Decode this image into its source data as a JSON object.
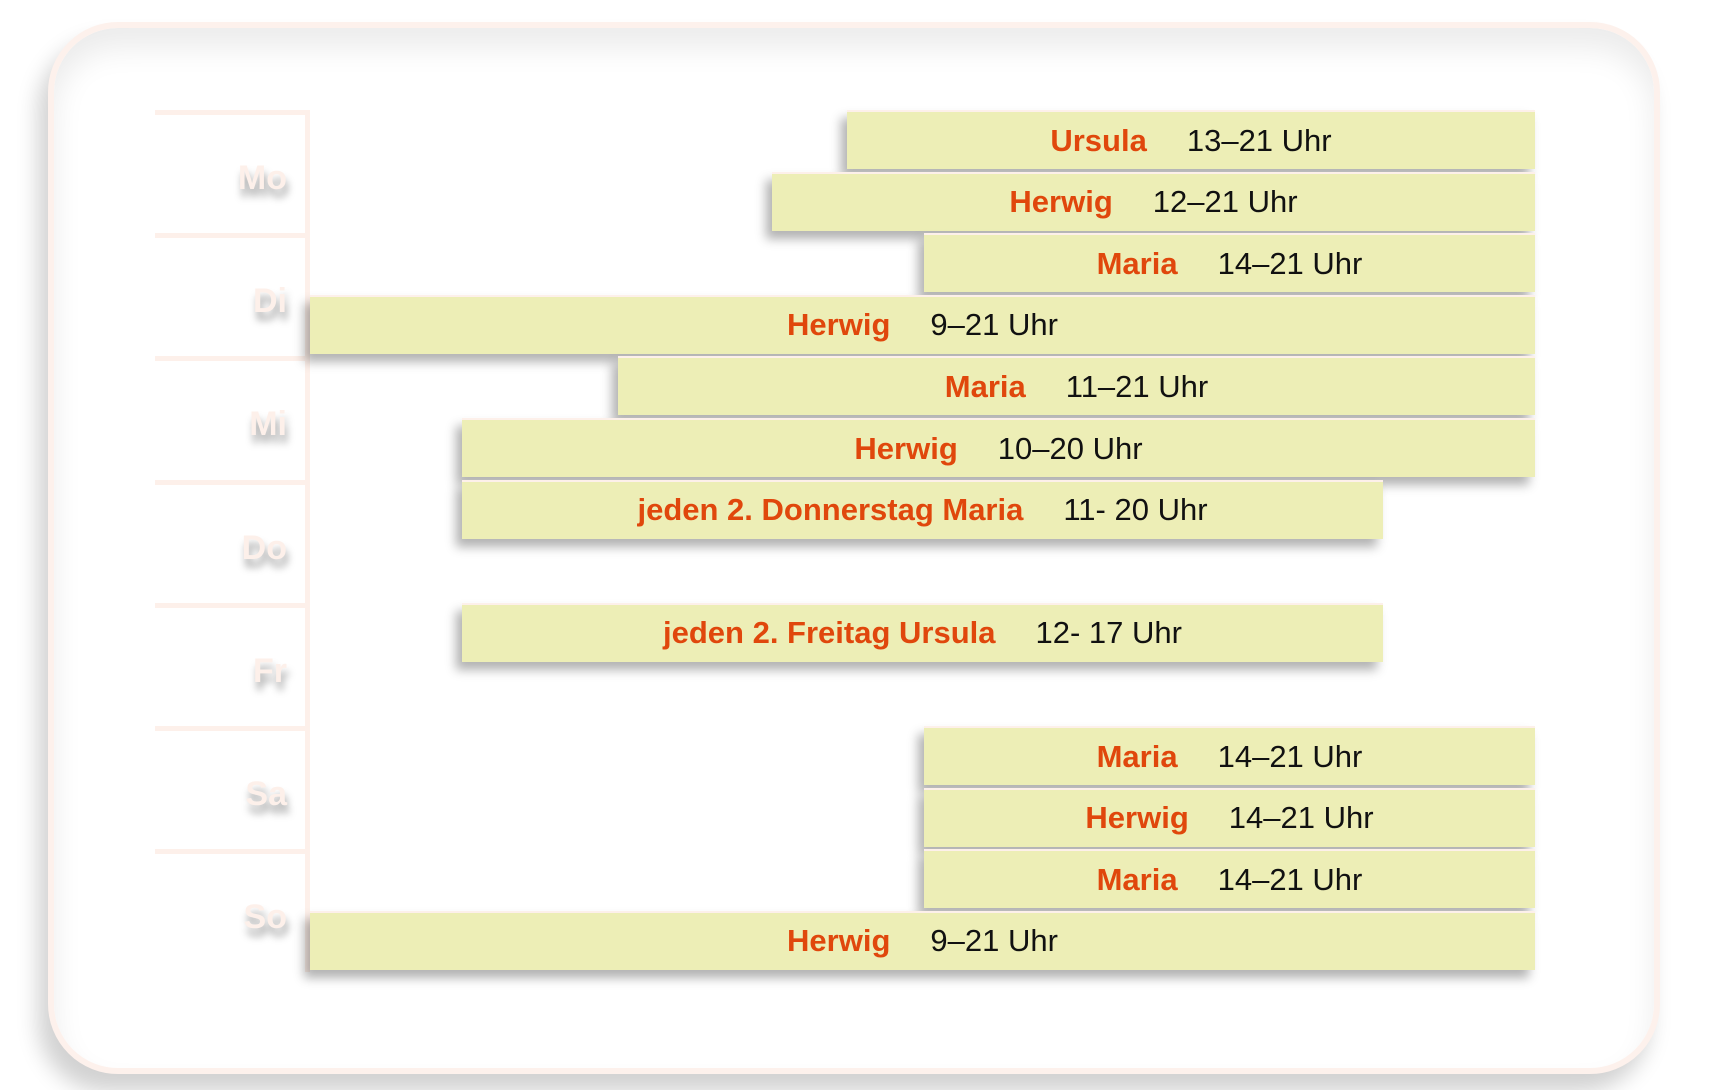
{
  "days": [
    "Mo",
    "Di",
    "Mi",
    "Do",
    "Fr",
    "Sa",
    "So"
  ],
  "shifts": [
    {
      "day": "Mo",
      "name": "Ursula",
      "time": "13–21 Uhr"
    },
    {
      "day": "Mo",
      "name": "Herwig",
      "time": "12–21 Uhr"
    },
    {
      "day": "Di",
      "name": "Maria",
      "time": "14–21 Uhr"
    },
    {
      "day": "Di",
      "name": "Herwig",
      "time": "9–21 Uhr"
    },
    {
      "day": "Mi",
      "name": "Maria",
      "time": "11–21 Uhr"
    },
    {
      "day": "Mi",
      "name": "Herwig",
      "time": "10–20 Uhr"
    },
    {
      "day": "Do",
      "name": "jeden 2. Donnerstag Maria",
      "time": "11- 20 Uhr"
    },
    {
      "day": "Fr",
      "name": "jeden 2. Freitag Ursula",
      "time": "12- 17 Uhr"
    },
    {
      "day": "Sa",
      "name": "Maria",
      "time": "14–21 Uhr"
    },
    {
      "day": "Sa",
      "name": "Herwig",
      "time": "14–21 Uhr"
    },
    {
      "day": "So",
      "name": "Maria",
      "time": "14–21 Uhr"
    },
    {
      "day": "So",
      "name": "Herwig",
      "time": "9–21 Uhr"
    }
  ],
  "colors": {
    "bar": "#edeeb6",
    "name": "#e0470c",
    "label": "#fdf0ea"
  }
}
